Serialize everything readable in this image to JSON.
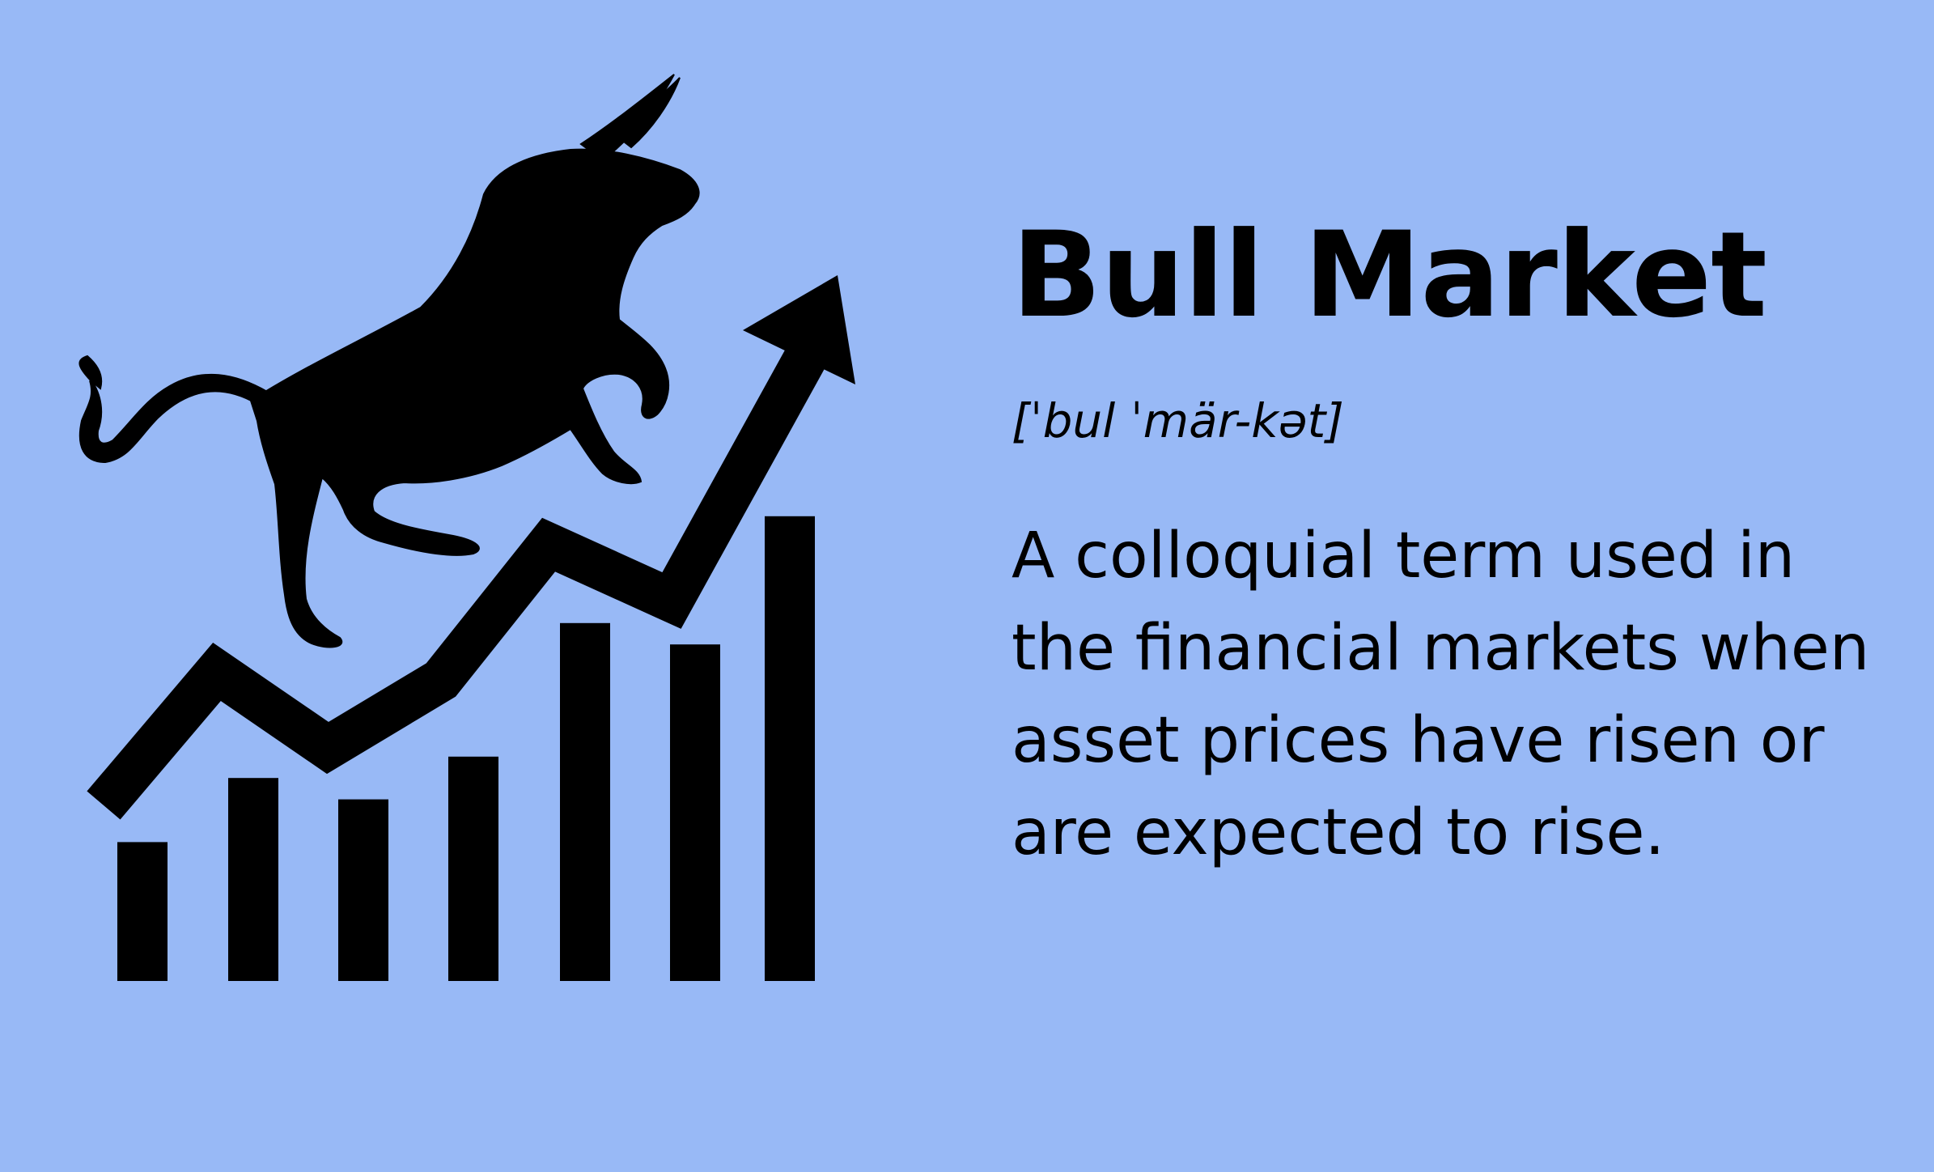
{
  "colors": {
    "background": "#98b9f6",
    "ink": "#000000"
  },
  "illustration": {
    "icons": [
      "bull-icon",
      "rising-arrow-icon",
      "bar-chart-icon"
    ],
    "bars": [
      0.26,
      0.38,
      0.34,
      0.42,
      0.67,
      0.63,
      0.87
    ]
  },
  "title": "Bull Market",
  "pronunciation": "[ˈbul ˈmär-kət]",
  "definition": "A colloquial term used in the financial markets when asset prices have risen or are expected to rise."
}
